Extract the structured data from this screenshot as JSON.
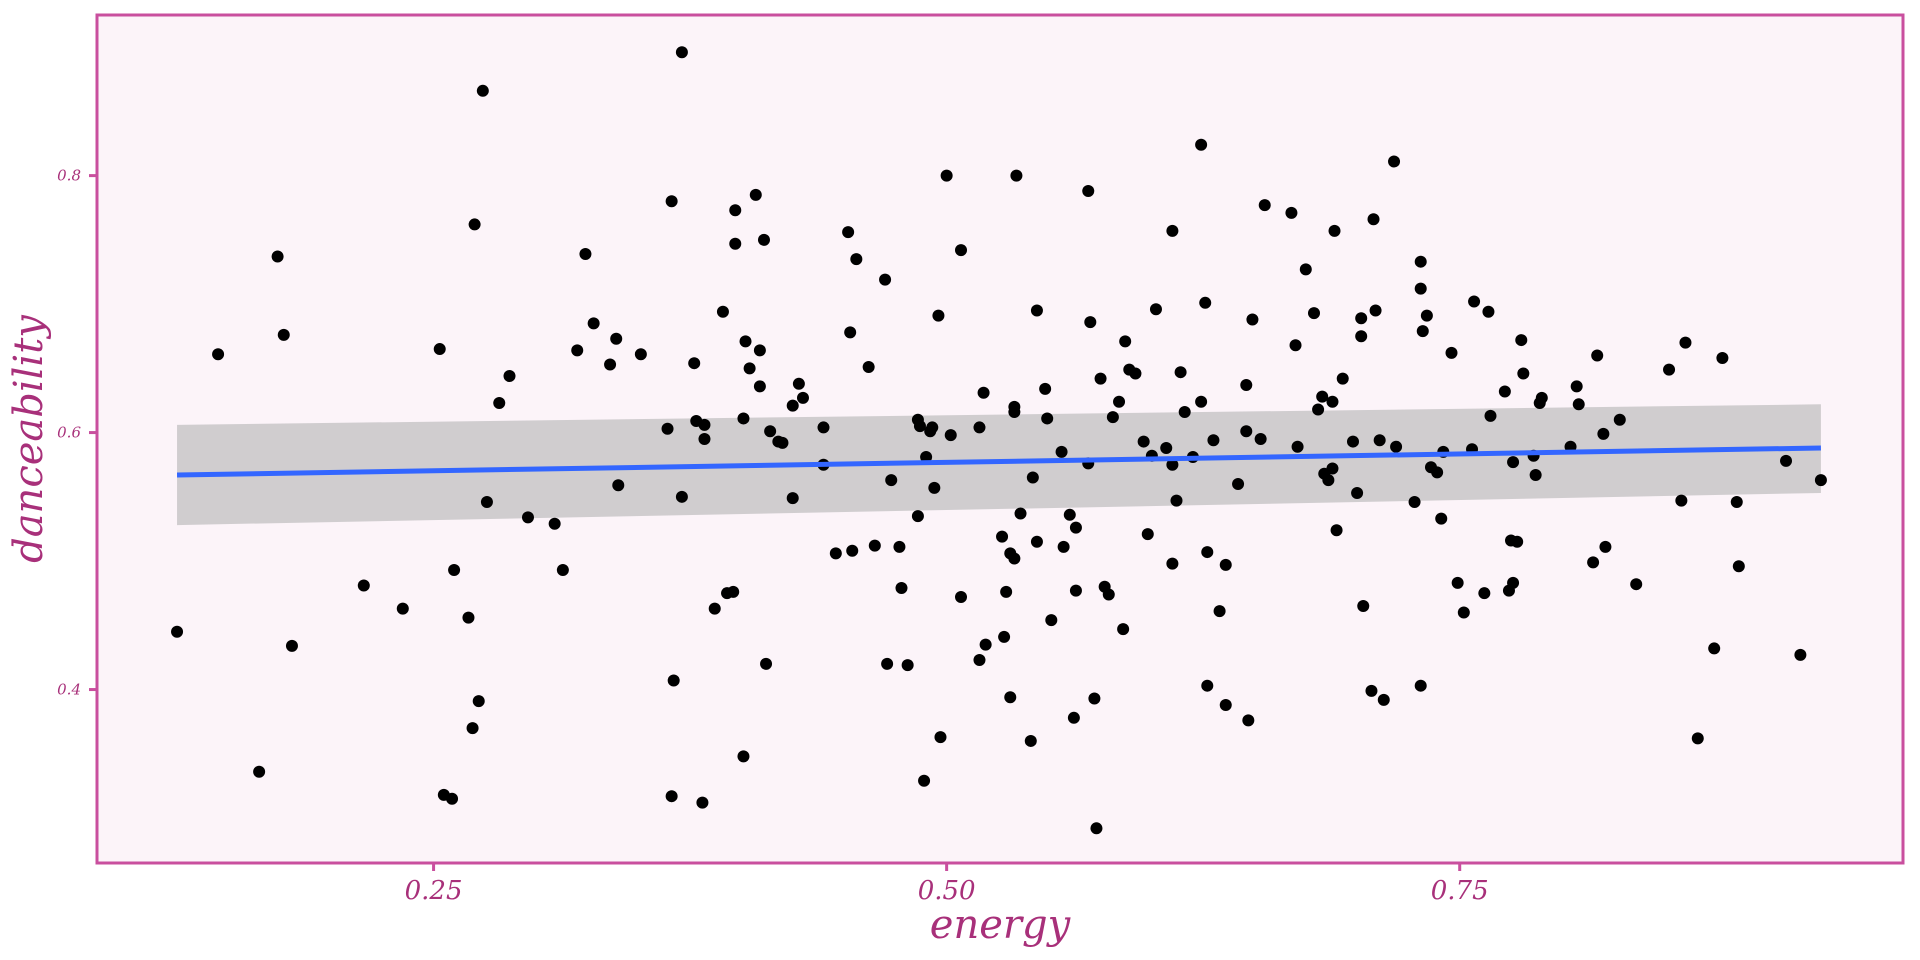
{
  "colors": {
    "panel_background": "#fcf4f9",
    "panel_border": "#c94f9e",
    "text": "#a8307a",
    "points": "#000000",
    "fit_line": "#3366ff",
    "ribbon": "#c8c5c8"
  },
  "chart_data": {
    "type": "scatter",
    "xlabel": "energy",
    "ylabel": "danceability",
    "xlim": [
      0.086,
      0.966
    ],
    "ylim": [
      0.265,
      0.925
    ],
    "x_ticks": [
      0.25,
      0.5,
      0.75
    ],
    "x_tick_labels": [
      "0.25",
      "0.50",
      "0.75"
    ],
    "y_ticks": [
      0.4,
      0.6,
      0.8
    ],
    "y_tick_labels": [
      "0.4",
      "0.6",
      "0.8"
    ],
    "grid": false,
    "legend": "none",
    "fit": {
      "method": "linear",
      "x": [
        0.125,
        0.926
      ],
      "y": [
        0.567,
        0.588
      ],
      "ci_lower": [
        0.528,
        0.553
      ],
      "ci_upper": [
        0.606,
        0.622
      ]
    },
    "points": [
      [
        0.125,
        0.445
      ],
      [
        0.145,
        0.661
      ],
      [
        0.165,
        0.336
      ],
      [
        0.174,
        0.737
      ],
      [
        0.177,
        0.676
      ],
      [
        0.181,
        0.434
      ],
      [
        0.216,
        0.481
      ],
      [
        0.235,
        0.463
      ],
      [
        0.253,
        0.665
      ],
      [
        0.255,
        0.318
      ],
      [
        0.259,
        0.315
      ],
      [
        0.26,
        0.493
      ],
      [
        0.267,
        0.456
      ],
      [
        0.269,
        0.37
      ],
      [
        0.27,
        0.762
      ],
      [
        0.272,
        0.391
      ],
      [
        0.274,
        0.866
      ],
      [
        0.276,
        0.546
      ],
      [
        0.282,
        0.623
      ],
      [
        0.287,
        0.644
      ],
      [
        0.296,
        0.534
      ],
      [
        0.309,
        0.529
      ],
      [
        0.313,
        0.493
      ],
      [
        0.32,
        0.664
      ],
      [
        0.324,
        0.739
      ],
      [
        0.328,
        0.685
      ],
      [
        0.336,
        0.653
      ],
      [
        0.339,
        0.673
      ],
      [
        0.34,
        0.559
      ],
      [
        0.351,
        0.661
      ],
      [
        0.364,
        0.603
      ],
      [
        0.366,
        0.78
      ],
      [
        0.367,
        0.407
      ],
      [
        0.366,
        0.317
      ],
      [
        0.371,
        0.55
      ],
      [
        0.371,
        0.896
      ],
      [
        0.377,
        0.654
      ],
      [
        0.378,
        0.609
      ],
      [
        0.381,
        0.312
      ],
      [
        0.382,
        0.606
      ],
      [
        0.382,
        0.595
      ],
      [
        0.387,
        0.463
      ],
      [
        0.391,
        0.694
      ],
      [
        0.393,
        0.475
      ],
      [
        0.396,
        0.476
      ],
      [
        0.397,
        0.773
      ],
      [
        0.397,
        0.747
      ],
      [
        0.401,
        0.611
      ],
      [
        0.401,
        0.348
      ],
      [
        0.402,
        0.671
      ],
      [
        0.404,
        0.65
      ],
      [
        0.407,
        0.785
      ],
      [
        0.409,
        0.636
      ],
      [
        0.409,
        0.664
      ],
      [
        0.411,
        0.75
      ],
      [
        0.412,
        0.42
      ],
      [
        0.414,
        0.601
      ],
      [
        0.418,
        0.593
      ],
      [
        0.42,
        0.592
      ],
      [
        0.425,
        0.621
      ],
      [
        0.425,
        0.549
      ],
      [
        0.428,
        0.638
      ],
      [
        0.43,
        0.627
      ],
      [
        0.44,
        0.575
      ],
      [
        0.44,
        0.604
      ],
      [
        0.446,
        0.506
      ],
      [
        0.452,
        0.756
      ],
      [
        0.453,
        0.678
      ],
      [
        0.454,
        0.508
      ],
      [
        0.456,
        0.735
      ],
      [
        0.462,
        0.651
      ],
      [
        0.465,
        0.512
      ],
      [
        0.47,
        0.719
      ],
      [
        0.471,
        0.42
      ],
      [
        0.473,
        0.563
      ],
      [
        0.477,
        0.511
      ],
      [
        0.478,
        0.479
      ],
      [
        0.481,
        0.419
      ],
      [
        0.486,
        0.535
      ],
      [
        0.486,
        0.61
      ],
      [
        0.487,
        0.605
      ],
      [
        0.489,
        0.329
      ],
      [
        0.49,
        0.581
      ],
      [
        0.492,
        0.601
      ],
      [
        0.493,
        0.604
      ],
      [
        0.494,
        0.557
      ],
      [
        0.496,
        0.691
      ],
      [
        0.497,
        0.363
      ],
      [
        0.5,
        0.8
      ],
      [
        0.502,
        0.598
      ],
      [
        0.507,
        0.742
      ],
      [
        0.507,
        0.472
      ],
      [
        0.516,
        0.423
      ],
      [
        0.516,
        0.604
      ],
      [
        0.518,
        0.631
      ],
      [
        0.519,
        0.435
      ],
      [
        0.527,
        0.519
      ],
      [
        0.528,
        0.441
      ],
      [
        0.529,
        0.476
      ],
      [
        0.531,
        0.394
      ],
      [
        0.531,
        0.506
      ],
      [
        0.533,
        0.62
      ],
      [
        0.533,
        0.502
      ],
      [
        0.533,
        0.616
      ],
      [
        0.534,
        0.8
      ],
      [
        0.536,
        0.537
      ],
      [
        0.541,
        0.36
      ],
      [
        0.542,
        0.565
      ],
      [
        0.544,
        0.695
      ],
      [
        0.544,
        0.515
      ],
      [
        0.548,
        0.634
      ],
      [
        0.549,
        0.611
      ],
      [
        0.551,
        0.454
      ],
      [
        0.556,
        0.585
      ],
      [
        0.557,
        0.511
      ],
      [
        0.56,
        0.536
      ],
      [
        0.562,
        0.378
      ],
      [
        0.563,
        0.526
      ],
      [
        0.563,
        0.477
      ],
      [
        0.569,
        0.576
      ],
      [
        0.569,
        0.788
      ],
      [
        0.57,
        0.686
      ],
      [
        0.572,
        0.393
      ],
      [
        0.573,
        0.292
      ],
      [
        0.575,
        0.642
      ],
      [
        0.577,
        0.48
      ],
      [
        0.579,
        0.474
      ],
      [
        0.581,
        0.612
      ],
      [
        0.584,
        0.624
      ],
      [
        0.586,
        0.447
      ],
      [
        0.587,
        0.671
      ],
      [
        0.589,
        0.649
      ],
      [
        0.592,
        0.646
      ],
      [
        0.596,
        0.593
      ],
      [
        0.598,
        0.521
      ],
      [
        0.6,
        0.582
      ],
      [
        0.602,
        0.696
      ],
      [
        0.607,
        0.588
      ],
      [
        0.61,
        0.757
      ],
      [
        0.61,
        0.575
      ],
      [
        0.61,
        0.498
      ],
      [
        0.612,
        0.547
      ],
      [
        0.614,
        0.647
      ],
      [
        0.616,
        0.616
      ],
      [
        0.62,
        0.581
      ],
      [
        0.624,
        0.624
      ],
      [
        0.624,
        0.824
      ],
      [
        0.626,
        0.701
      ],
      [
        0.627,
        0.507
      ],
      [
        0.627,
        0.403
      ],
      [
        0.63,
        0.594
      ],
      [
        0.633,
        0.461
      ],
      [
        0.636,
        0.388
      ],
      [
        0.636,
        0.497
      ],
      [
        0.642,
        0.56
      ],
      [
        0.646,
        0.601
      ],
      [
        0.646,
        0.637
      ],
      [
        0.647,
        0.376
      ],
      [
        0.649,
        0.688
      ],
      [
        0.653,
        0.595
      ],
      [
        0.655,
        0.777
      ],
      [
        0.668,
        0.771
      ],
      [
        0.67,
        0.668
      ],
      [
        0.671,
        0.589
      ],
      [
        0.675,
        0.727
      ],
      [
        0.679,
        0.693
      ],
      [
        0.681,
        0.618
      ],
      [
        0.683,
        0.628
      ],
      [
        0.684,
        0.568
      ],
      [
        0.686,
        0.563
      ],
      [
        0.688,
        0.572
      ],
      [
        0.688,
        0.624
      ],
      [
        0.689,
        0.757
      ],
      [
        0.69,
        0.524
      ],
      [
        0.693,
        0.642
      ],
      [
        0.698,
        0.593
      ],
      [
        0.7,
        0.553
      ],
      [
        0.702,
        0.675
      ],
      [
        0.702,
        0.689
      ],
      [
        0.703,
        0.465
      ],
      [
        0.707,
        0.399
      ],
      [
        0.708,
        0.766
      ],
      [
        0.709,
        0.695
      ],
      [
        0.711,
        0.594
      ],
      [
        0.713,
        0.392
      ],
      [
        0.718,
        0.811
      ],
      [
        0.719,
        0.589
      ],
      [
        0.728,
        0.546
      ],
      [
        0.731,
        0.712
      ],
      [
        0.731,
        0.403
      ],
      [
        0.731,
        0.733
      ],
      [
        0.732,
        0.679
      ],
      [
        0.734,
        0.691
      ],
      [
        0.736,
        0.573
      ],
      [
        0.739,
        0.569
      ],
      [
        0.741,
        0.533
      ],
      [
        0.742,
        0.585
      ],
      [
        0.746,
        0.662
      ],
      [
        0.749,
        0.483
      ],
      [
        0.752,
        0.46
      ],
      [
        0.756,
        0.587
      ],
      [
        0.757,
        0.702
      ],
      [
        0.762,
        0.475
      ],
      [
        0.764,
        0.694
      ],
      [
        0.765,
        0.613
      ],
      [
        0.772,
        0.632
      ],
      [
        0.774,
        0.477
      ],
      [
        0.775,
        0.516
      ],
      [
        0.776,
        0.577
      ],
      [
        0.776,
        0.483
      ],
      [
        0.778,
        0.515
      ],
      [
        0.78,
        0.672
      ],
      [
        0.781,
        0.646
      ],
      [
        0.786,
        0.582
      ],
      [
        0.787,
        0.567
      ],
      [
        0.789,
        0.623
      ],
      [
        0.79,
        0.627
      ],
      [
        0.804,
        0.589
      ],
      [
        0.807,
        0.636
      ],
      [
        0.808,
        0.622
      ],
      [
        0.815,
        0.499
      ],
      [
        0.817,
        0.66
      ],
      [
        0.82,
        0.599
      ],
      [
        0.821,
        0.511
      ],
      [
        0.828,
        0.61
      ],
      [
        0.836,
        0.482
      ],
      [
        0.852,
        0.649
      ],
      [
        0.858,
        0.547
      ],
      [
        0.86,
        0.67
      ],
      [
        0.866,
        0.362
      ],
      [
        0.874,
        0.432
      ],
      [
        0.878,
        0.658
      ],
      [
        0.885,
        0.546
      ],
      [
        0.886,
        0.496
      ],
      [
        0.909,
        0.578
      ],
      [
        0.916,
        0.427
      ],
      [
        0.926,
        0.563
      ]
    ]
  }
}
